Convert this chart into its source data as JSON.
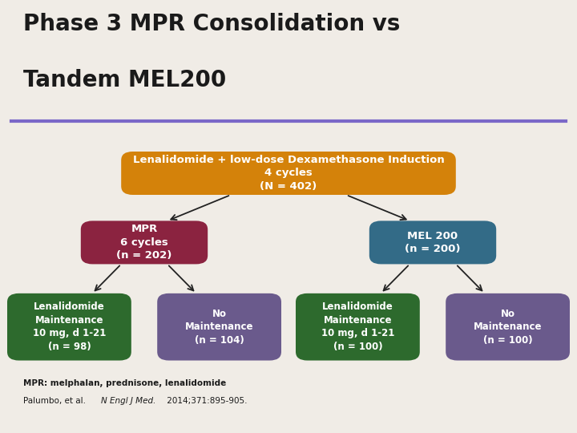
{
  "title_line1": "Phase 3 MPR Consolidation vs",
  "title_line2": "Tandem MEL200",
  "title_fontsize": 20,
  "title_color": "#1a1a1a",
  "background_color": "#f0ece6",
  "divider_color": "#7b68c8",
  "top_box": {
    "text": "Lenalidomide + low-dose Dexamethasone Induction\n4 cycles\n(N = 402)",
    "color": "#d4820a",
    "text_color": "#ffffff",
    "fontsize": 9.5
  },
  "mid_left_box": {
    "text": "MPR\n6 cycles\n(n = 202)",
    "color": "#8b2340",
    "text_color": "#ffffff",
    "fontsize": 9.5
  },
  "mid_right_box": {
    "text": "MEL 200\n(n = 200)",
    "color": "#336b87",
    "text_color": "#ffffff",
    "fontsize": 9.5
  },
  "bottom_boxes": [
    {
      "text": "Lenalidomide\nMaintenance\n10 mg, d 1-21\n(n = 98)",
      "color": "#2d6a2d",
      "text_color": "#ffffff",
      "fontsize": 8.5
    },
    {
      "text": "No\nMaintenance\n(n = 104)",
      "color": "#6a5a8c",
      "text_color": "#ffffff",
      "fontsize": 8.5
    },
    {
      "text": "Lenalidomide\nMaintenance\n10 mg, d 1-21\n(n = 100)",
      "color": "#2d6a2d",
      "text_color": "#ffffff",
      "fontsize": 8.5
    },
    {
      "text": "No\nMaintenance\n(n = 100)",
      "color": "#6a5a8c",
      "text_color": "#ffffff",
      "fontsize": 8.5
    }
  ],
  "footnote1": "MPR: melphalan, prednisone, lenalidomide",
  "footnote2_pre": "Palumbo, et al. ",
  "footnote2_italic": "N Engl J Med.",
  "footnote2_post": " 2014;371:895-905.",
  "footnote_fontsize": 7.5
}
